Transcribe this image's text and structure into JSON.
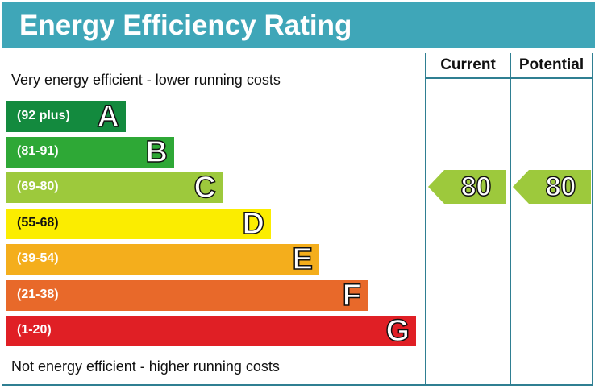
{
  "title": "Energy Efficiency Rating",
  "columns": {
    "current": "Current",
    "potential": "Potential"
  },
  "notes": {
    "top": "Very energy efficient - lower running costs",
    "bottom": "Not energy efficient - higher running costs"
  },
  "colors": {
    "header": "#3fa6b8",
    "frame": "#2f7f92"
  },
  "chart_data": {
    "type": "bar",
    "title": "Energy Efficiency Rating",
    "bands": [
      {
        "letter": "A",
        "range": "(92 plus)",
        "color": "#138a3e",
        "text_color": "#ffffff"
      },
      {
        "letter": "B",
        "range": "(81-91)",
        "color": "#2ea836",
        "text_color": "#ffffff"
      },
      {
        "letter": "C",
        "range": "(69-80)",
        "color": "#9dc93c",
        "text_color": "#ffffff"
      },
      {
        "letter": "D",
        "range": "(55-68)",
        "color": "#fbed00",
        "text_color": "#111111"
      },
      {
        "letter": "E",
        "range": "(39-54)",
        "color": "#f4ae1c",
        "text_color": "#ffffff"
      },
      {
        "letter": "F",
        "range": "(21-38)",
        "color": "#e8692a",
        "text_color": "#ffffff"
      },
      {
        "letter": "G",
        "range": "(1-20)",
        "color": "#e01f25",
        "text_color": "#ffffff"
      }
    ],
    "current": {
      "value": "80",
      "band": "C",
      "color": "#9dc93c"
    },
    "potential": {
      "value": "80",
      "band": "C",
      "color": "#9dc93c"
    }
  }
}
